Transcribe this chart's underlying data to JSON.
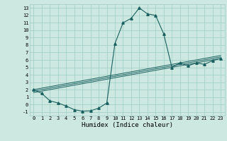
{
  "xlabel": "Humidex (Indice chaleur)",
  "x_values": [
    0,
    1,
    2,
    3,
    4,
    5,
    6,
    7,
    8,
    9,
    10,
    11,
    12,
    13,
    14,
    15,
    16,
    17,
    18,
    19,
    20,
    21,
    22,
    23
  ],
  "main_curve": [
    2.0,
    1.5,
    0.5,
    0.2,
    -0.2,
    -0.7,
    -0.9,
    -0.85,
    -0.5,
    0.2,
    8.2,
    11.0,
    11.6,
    13.0,
    12.2,
    12.0,
    9.5,
    5.0,
    5.6,
    5.2,
    5.6,
    5.4,
    5.9,
    6.2
  ],
  "line_diag1": [
    2.0,
    2.2,
    2.4,
    2.6,
    2.8,
    3.0,
    3.2,
    3.4,
    3.6,
    3.8,
    4.0,
    4.2,
    4.4,
    4.6,
    4.8,
    5.0,
    5.2,
    5.4,
    5.6,
    5.8,
    6.0,
    6.2,
    6.4,
    6.6
  ],
  "line_diag2": [
    1.8,
    2.0,
    2.2,
    2.4,
    2.6,
    2.8,
    3.0,
    3.2,
    3.4,
    3.6,
    3.8,
    4.0,
    4.2,
    4.4,
    4.6,
    4.8,
    5.0,
    5.2,
    5.4,
    5.6,
    5.8,
    6.0,
    6.2,
    6.4
  ],
  "line_diag3": [
    1.6,
    1.8,
    2.0,
    2.2,
    2.4,
    2.6,
    2.8,
    3.0,
    3.2,
    3.4,
    3.6,
    3.8,
    4.0,
    4.2,
    4.4,
    4.6,
    4.8,
    5.0,
    5.2,
    5.4,
    5.6,
    5.8,
    6.0,
    6.2
  ],
  "bg_color": "#cce8e0",
  "grid_color": "#9ecec4",
  "line_color": "#1a6060",
  "ylim": [
    -1.5,
    13.5
  ],
  "xlim": [
    -0.5,
    23.5
  ],
  "yticks": [
    -1,
    0,
    1,
    2,
    3,
    4,
    5,
    6,
    7,
    8,
    9,
    10,
    11,
    12,
    13
  ],
  "xticks": [
    0,
    1,
    2,
    3,
    4,
    5,
    6,
    7,
    8,
    9,
    10,
    11,
    12,
    13,
    14,
    15,
    16,
    17,
    18,
    19,
    20,
    21,
    22,
    23
  ],
  "marker": "^",
  "markersize": 2.5,
  "lw_main": 0.8,
  "lw_diag": 0.7,
  "tick_fontsize": 5.0,
  "xlabel_fontsize": 6.5
}
